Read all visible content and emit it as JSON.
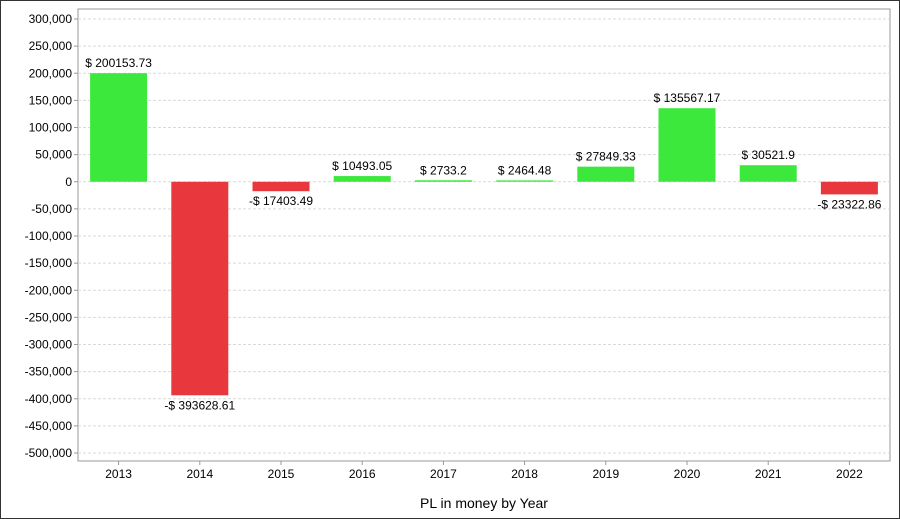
{
  "chart_data": {
    "type": "bar",
    "title": "",
    "xlabel": "PL in money by Year",
    "ylabel": "",
    "categories": [
      "2013",
      "2014",
      "2015",
      "2016",
      "2017",
      "2018",
      "2019",
      "2020",
      "2021",
      "2022"
    ],
    "values": [
      200153.73,
      -393628.61,
      -17403.49,
      10493.05,
      2733.2,
      2464.48,
      27849.33,
      135567.17,
      30521.9,
      -23322.86
    ],
    "data_labels": [
      "$ 200153.73",
      "-$ 393628.61",
      "-$ 17403.49",
      "$ 10493.05",
      "$ 2733.2",
      "$ 2464.48",
      "$ 27849.33",
      "$ 135567.17",
      "$ 30521.9",
      "-$ 23322.86"
    ],
    "ylim": [
      -500000,
      300000
    ],
    "yticks": [
      300000,
      250000,
      200000,
      150000,
      100000,
      50000,
      0,
      -50000,
      -100000,
      -150000,
      -200000,
      -250000,
      -300000,
      -350000,
      -400000,
      -450000,
      -500000
    ],
    "ytick_labels": [
      "300,000",
      "250,000",
      "200,000",
      "150,000",
      "100,000",
      "50,000",
      "0",
      "-50,000",
      "-100,000",
      "-150,000",
      "-200,000",
      "-250,000",
      "-300,000",
      "-350,000",
      "-400,000",
      "-450,000",
      "-500,000"
    ],
    "grid": true,
    "colors": {
      "positive": "#3de83d",
      "negative": "#e8383d",
      "grid": "#d9d9d9",
      "axis": "#999999"
    }
  }
}
